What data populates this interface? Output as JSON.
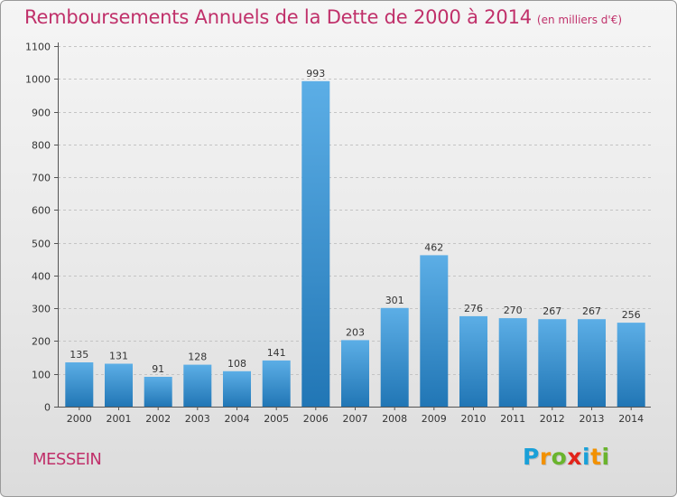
{
  "title": "Remboursements Annuels de la Dette de 2000 à 2014",
  "subtitle": "(en milliers d'€)",
  "commune": "MESSEIN",
  "logo": {
    "letters": [
      "P",
      "r",
      "o",
      "x",
      "i",
      "t",
      "i"
    ],
    "colors": [
      "#1aa0d8",
      "#f29100",
      "#6ab42d",
      "#e2231a",
      "#1aa0d8",
      "#f29100",
      "#6ab42d"
    ]
  },
  "colors": {
    "bar_top": "#5caee6",
    "bar_bottom": "#2176b5",
    "title": "#c0306a",
    "grid": "#c4c4c4"
  },
  "chart_data": {
    "type": "bar",
    "categories": [
      "2000",
      "2001",
      "2002",
      "2003",
      "2004",
      "2005",
      "2006",
      "2007",
      "2008",
      "2009",
      "2010",
      "2011",
      "2012",
      "2013",
      "2014"
    ],
    "values": [
      135,
      131,
      91,
      128,
      108,
      141,
      993,
      203,
      301,
      462,
      276,
      270,
      267,
      267,
      256
    ],
    "yticks": [
      0,
      100,
      200,
      300,
      400,
      500,
      600,
      700,
      800,
      900,
      1000,
      1100
    ],
    "ylim": [
      0,
      1100
    ],
    "grid": true
  }
}
